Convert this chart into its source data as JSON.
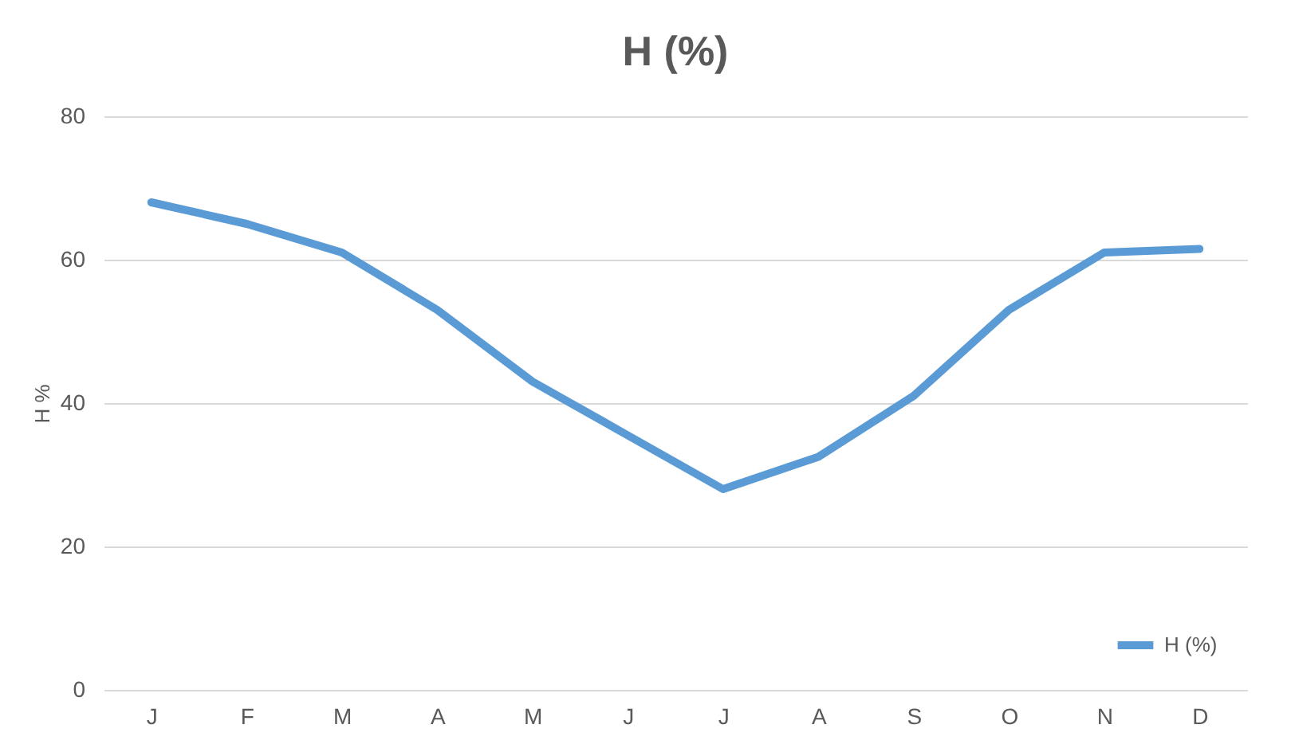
{
  "chart_data": {
    "type": "line",
    "title": "H (%)",
    "ylabel": "H %",
    "categories": [
      "J",
      "F",
      "M",
      "A",
      "M",
      "J",
      "J",
      "A",
      "S",
      "O",
      "N",
      "D"
    ],
    "series": [
      {
        "name": "H (%)",
        "color": "#5b9bd5",
        "values": [
          68,
          65,
          61,
          53,
          43,
          35.5,
          28,
          32.5,
          41,
          53,
          61,
          61.5
        ]
      }
    ],
    "ylim": [
      0,
      80
    ],
    "yticks": [
      0,
      20,
      40,
      60,
      80
    ],
    "grid": "y",
    "legend": "bottom right",
    "marker": "none",
    "line_style": "solid"
  }
}
